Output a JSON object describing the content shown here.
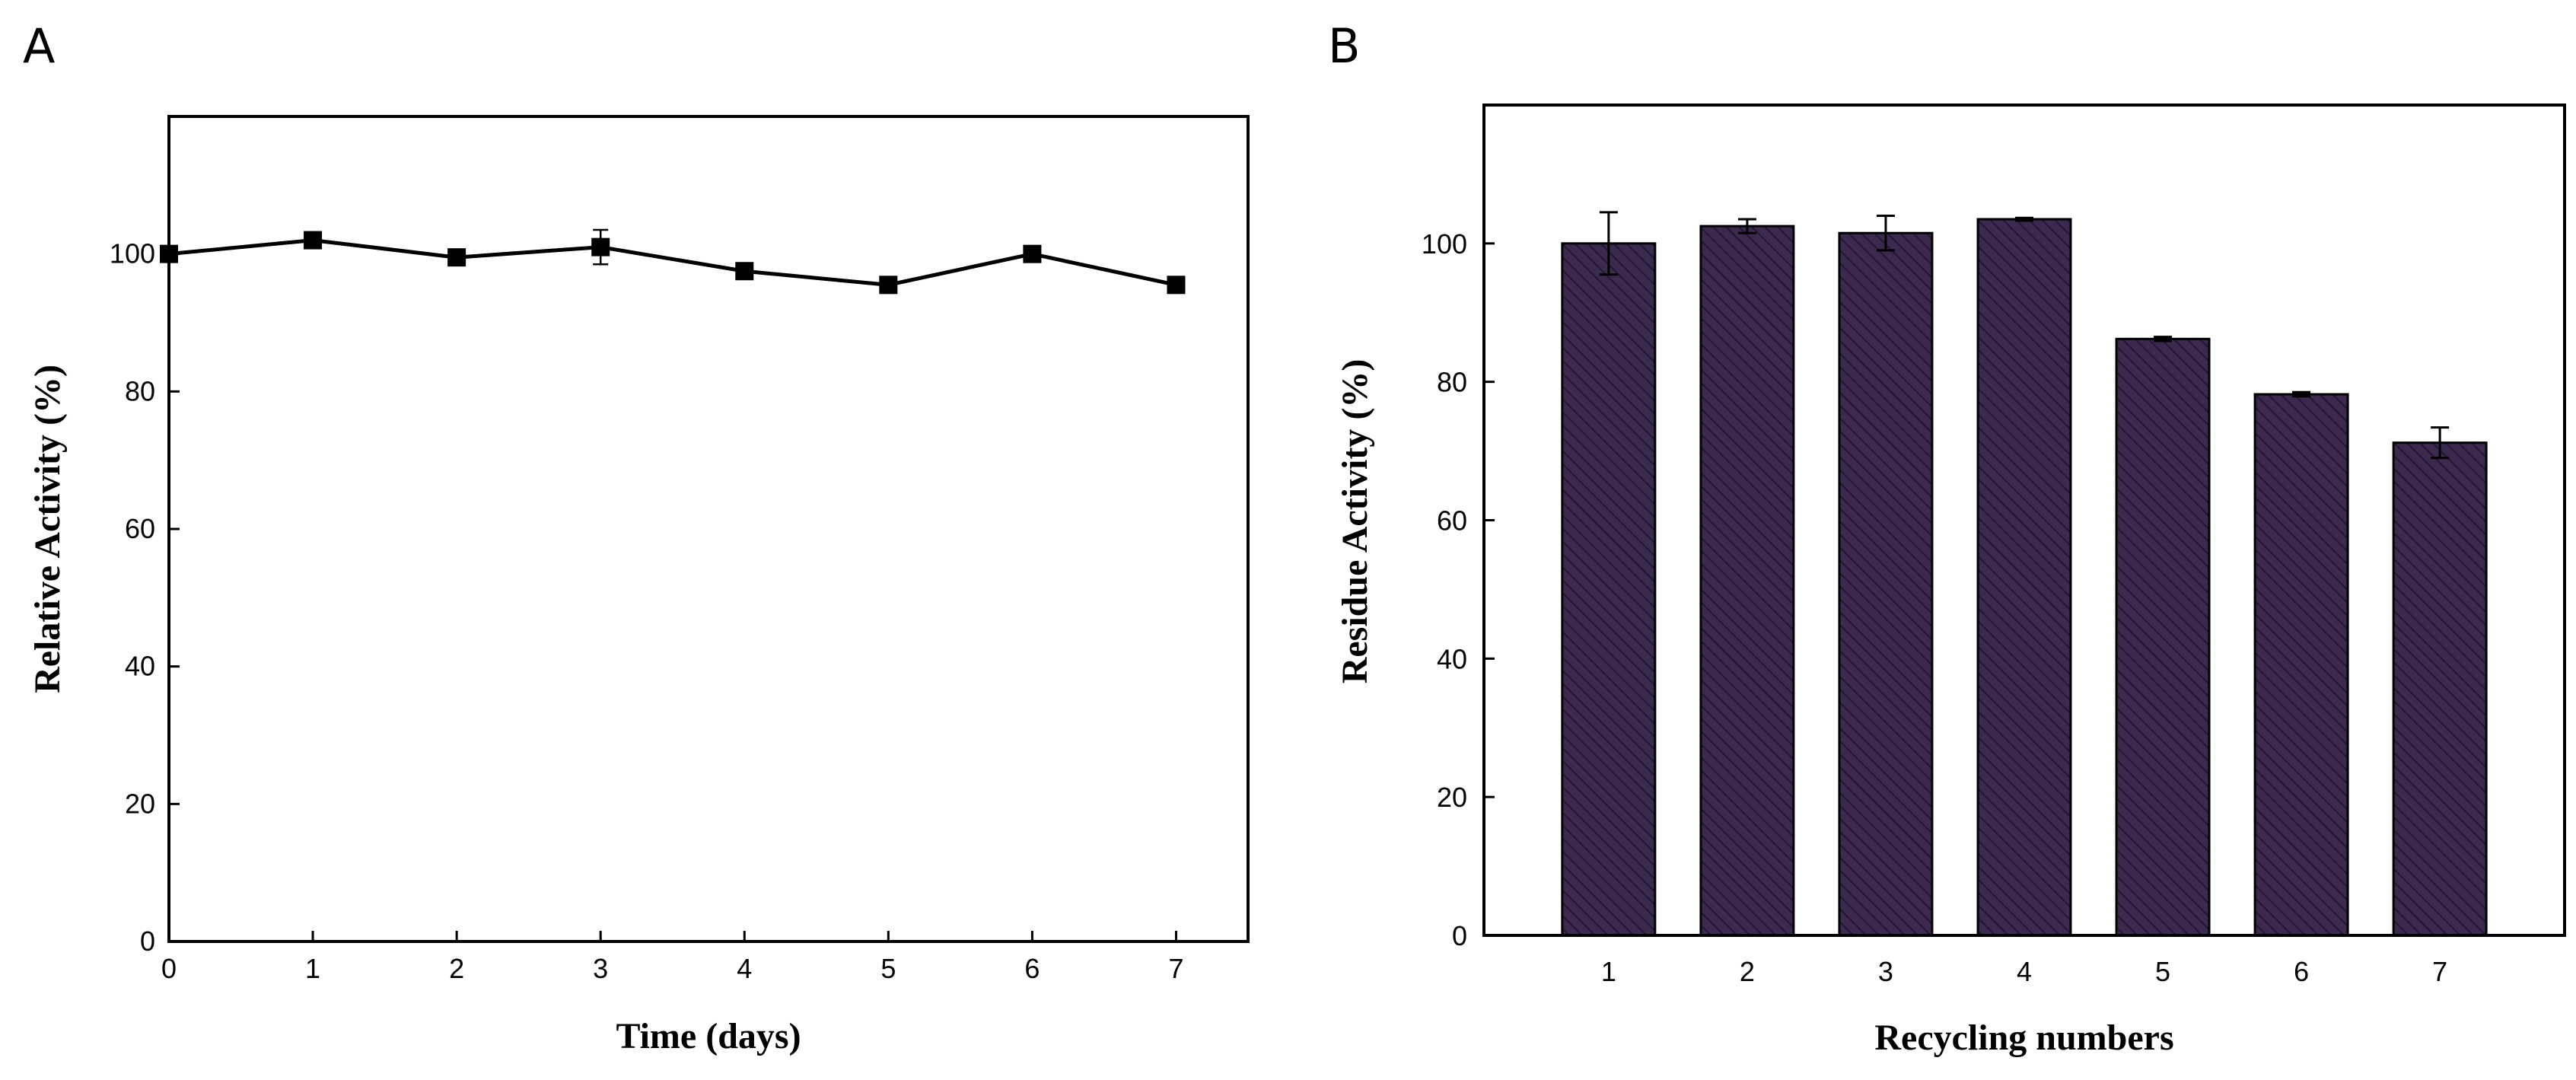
{
  "colors": {
    "bar_fill": "#3b2a4e",
    "bar_hatch": "#221633",
    "line": "#000000"
  },
  "chart_data": [
    {
      "panel": "A",
      "type": "line",
      "xlabel": "Time (days)",
      "ylabel": "Relative Activity (%)",
      "x": [
        0,
        1,
        2,
        3,
        4,
        5,
        6,
        7
      ],
      "y": [
        100,
        102,
        99.5,
        101,
        97.5,
        95.5,
        100,
        95.5
      ],
      "error": [
        0.8,
        0.8,
        0.8,
        2.5,
        0.8,
        0.8,
        0.8,
        0.8
      ],
      "xlim": [
        0,
        7.5
      ],
      "ylim": [
        0,
        120
      ],
      "xticks": [
        0,
        1,
        2,
        3,
        4,
        5,
        6,
        7
      ],
      "yticks": [
        0,
        20,
        40,
        60,
        80,
        100
      ],
      "marker": "square"
    },
    {
      "panel": "B",
      "type": "bar",
      "xlabel": "Recycling  numbers",
      "ylabel": "Residue Activity (%)",
      "categories": [
        "1",
        "2",
        "3",
        "4",
        "5",
        "6",
        "7"
      ],
      "values": [
        100,
        102.5,
        101.5,
        103.5,
        86.2,
        78.2,
        71.2
      ],
      "error": [
        4.5,
        1.0,
        2.5,
        0.2,
        0.3,
        0.3,
        2.2
      ],
      "ylim": [
        0,
        120
      ],
      "yticks": [
        0,
        20,
        40,
        60,
        80,
        100
      ]
    }
  ]
}
